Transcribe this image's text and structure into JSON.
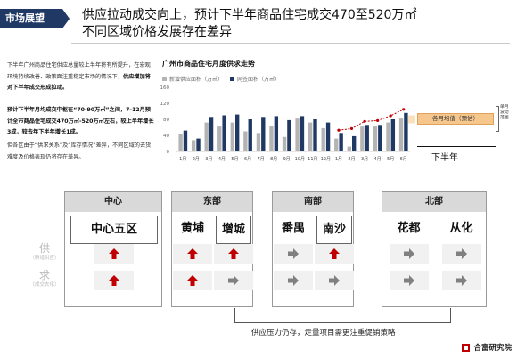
{
  "header": {
    "tag": "市场展望",
    "title_line1": "供应拉动成交向上，预计下半年商品住宅成交470至520万㎡",
    "title_line2": "不同区域价格发展存在差异"
  },
  "text": {
    "p1": "下半年广州商品住宅供应总量较上半年将有所提升，在宏观环境持续改善、政策面注重稳定市场的情况下，",
    "p1_bold": "供应增加将对下半年成交形成拉动。",
    "p2_bold": "预计下半年月均成交中枢在“70-90万㎡”之间，7-12月预计全市商品住宅成交470万㎡-520万㎡左右，较上半年增长3成，较去年下半年增长1成。",
    "p3": "但各区由于“供求关系”及“库存情况”差异，不同区域的去货难度及价格表现仍将存在差异。"
  },
  "chart_data": {
    "type": "bar",
    "title": "广州市商品住宅月度供求走势",
    "legend": [
      {
        "name": "新增供应面积（万㎡）",
        "color": "#b4b4b4"
      },
      {
        "name": "网签面积（万㎡）",
        "color": "#1f3864"
      }
    ],
    "colors": {
      "supply": "#b4b4b4",
      "deal": "#1f3864",
      "trend": "#c00000"
    },
    "categories": [
      "1月",
      "2月",
      "3月",
      "4月",
      "5月",
      "6月",
      "7月",
      "8月",
      "9月",
      "10月",
      "11月",
      "12月",
      "1月",
      "2月",
      "3月",
      "4月",
      "5月",
      "6月"
    ],
    "series": [
      {
        "name": "新增供应面积（万㎡）",
        "values": [
          44,
          28,
          72,
          62,
          72,
          50,
          46,
          64,
          36,
          82,
          72,
          58,
          32,
          12,
          62,
          62,
          72,
          82
        ]
      },
      {
        "name": "网签面积（万㎡）",
        "values": [
          52,
          32,
          86,
          90,
          92,
          80,
          86,
          88,
          78,
          88,
          80,
          72,
          46,
          38,
          66,
          66,
          80,
          96
        ]
      }
    ],
    "trend_months": [
      12,
      13,
      14,
      15,
      16,
      17
    ],
    "trend_values": [
      44,
      48,
      66,
      68,
      80,
      96
    ],
    "ylim": [
      0,
      160
    ],
    "yticks": [
      0,
      40,
      80,
      120,
      160
    ],
    "band": {
      "label": "各月均值（预估）",
      "range_label": "单月波动范围",
      "low": 70,
      "high": 90
    },
    "period_label": "下半年"
  },
  "table": {
    "row_supply": {
      "main": "供",
      "sub": "（新增供应）"
    },
    "row_demand": {
      "main": "求",
      "sub": "（成交去化）"
    },
    "regions": [
      {
        "name": "中心",
        "districts": [
          "中心五区"
        ],
        "supply": [
          "up"
        ],
        "demand": [
          "up"
        ]
      },
      {
        "name": "东部",
        "districts": [
          "黄埔",
          "增城"
        ],
        "supply": [
          "up",
          "up"
        ],
        "demand": [
          "up",
          "right"
        ]
      },
      {
        "name": "南部",
        "districts": [
          "番禺",
          "南沙"
        ],
        "supply": [
          "right",
          "up"
        ],
        "demand": [
          "right",
          "right"
        ]
      },
      {
        "name": "北部",
        "districts": [
          "花都",
          "从化"
        ],
        "supply": [
          "right",
          "right"
        ],
        "demand": [
          "right",
          "right"
        ]
      }
    ],
    "bottom_note": "供应压力仍存，走量项目需更注重促销策略"
  },
  "logo": {
    "text": "合富研究院"
  }
}
